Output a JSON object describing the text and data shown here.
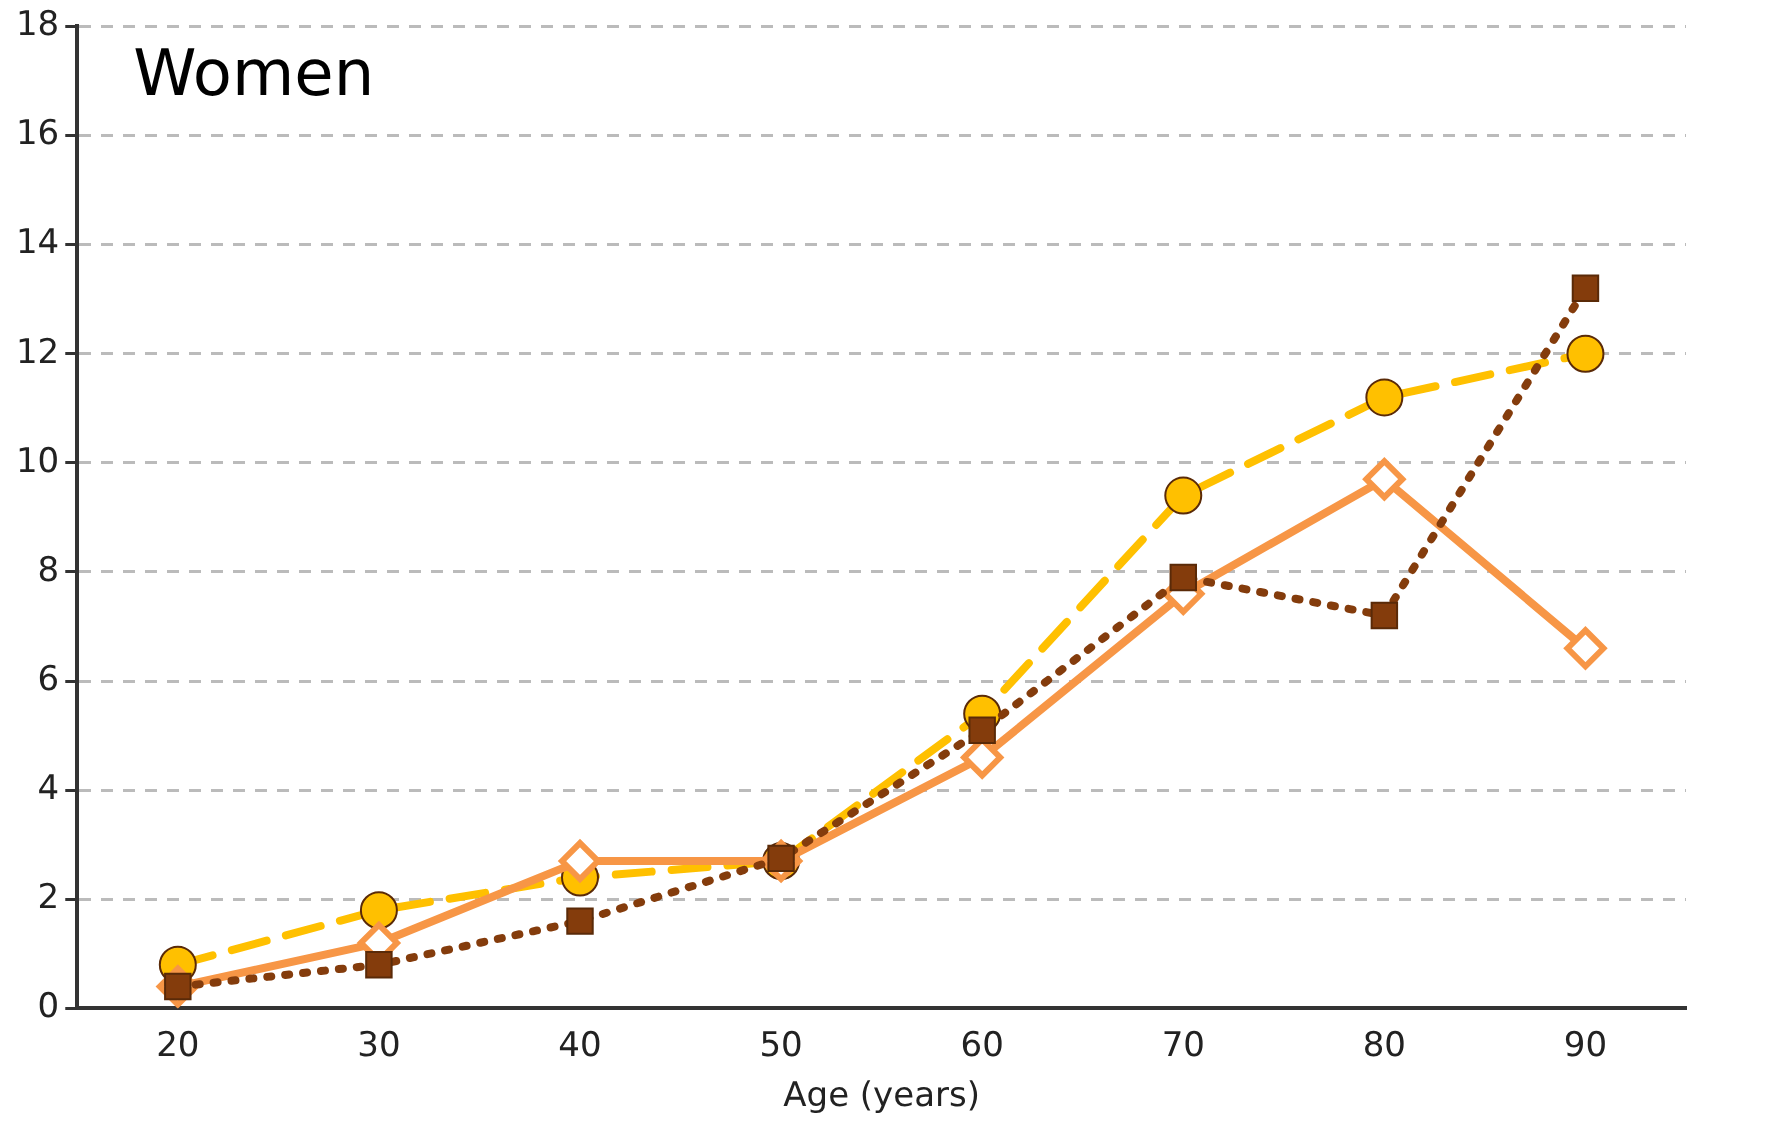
{
  "chart_data": {
    "type": "line",
    "xlabel": "Age (years)",
    "annotations": [
      "Women"
    ],
    "categories": [
      "20",
      "30",
      "40",
      "50",
      "60",
      "70",
      "80",
      "90"
    ],
    "ylim": [
      0,
      18
    ],
    "yticks": [
      0,
      2,
      4,
      6,
      8,
      10,
      12,
      14,
      16,
      18
    ],
    "grid": "y",
    "legend": false,
    "series": [
      {
        "color": "#ffc000",
        "marker": "circle",
        "line_style": "dashed",
        "values": [
          0.8,
          1.8,
          2.4,
          2.7,
          5.4,
          9.4,
          11.2,
          12.0
        ]
      },
      {
        "color": "#f79646",
        "marker": "diamond",
        "line_style": "solid",
        "values": [
          0.4,
          1.2,
          2.7,
          2.7,
          4.6,
          7.6,
          9.7,
          6.6
        ]
      },
      {
        "color": "#843c0c",
        "marker": "square",
        "line_style": "dotted",
        "values": [
          0.4,
          0.8,
          1.6,
          2.75,
          5.1,
          7.9,
          7.2,
          13.2
        ]
      }
    ]
  }
}
